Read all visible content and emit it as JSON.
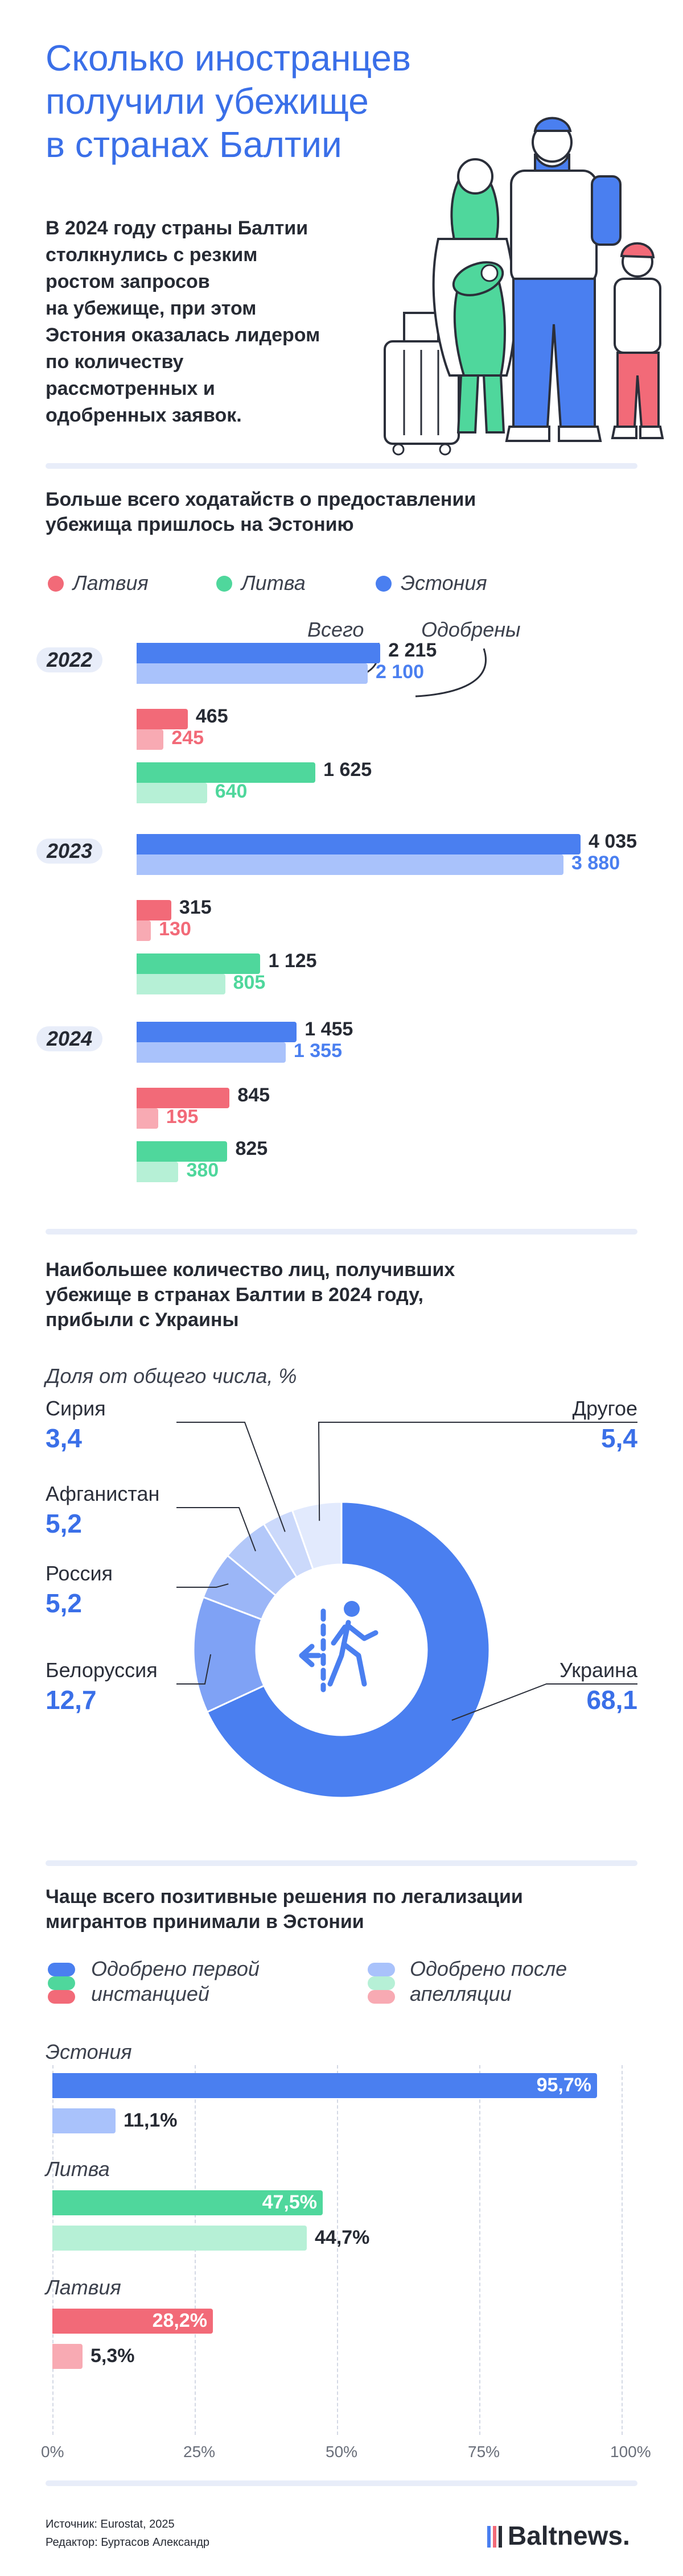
{
  "title_lines": [
    "Сколько иностранцев",
    "получили убежище",
    "в странах Балтии"
  ],
  "intro_lines": [
    "В 2024 году страны Балтии",
    "столкнулись с резким",
    "ростом запросов",
    "на убежище, при этом",
    "Эстония оказалась лидером",
    "по количеству",
    "рассмотренных и",
    "одобренных заявок."
  ],
  "colors": {
    "accent": "#3a6fe8",
    "estonia": "#4a7ff0",
    "estonia_light": "#a9c2fb",
    "lithuania": "#4fd79c",
    "lithuania_light": "#b6f0d6",
    "latvia": "#f26a78",
    "latvia_light": "#f8aab3",
    "rule": "#e8edf9"
  },
  "section1": {
    "heading_lines": [
      "Больше всего ходатайств о предоставлении",
      "убежища пришлось на Эстонию"
    ],
    "legend": [
      "Латвия",
      "Литва",
      "Эстония"
    ],
    "annot_total": "Всего",
    "annot_approved": "Одобрены",
    "chart_data": {
      "type": "bar",
      "categories": [
        "2022",
        "2023",
        "2024"
      ],
      "series": [
        {
          "name": "Эстония",
          "total": [
            2215,
            4035,
            1455
          ],
          "approved": [
            2100,
            3880,
            1355
          ]
        },
        {
          "name": "Латвия",
          "total": [
            465,
            315,
            845
          ],
          "approved": [
            245,
            130,
            195
          ]
        },
        {
          "name": "Литва",
          "total": [
            1625,
            1125,
            825
          ],
          "approved": [
            640,
            805,
            380
          ]
        }
      ],
      "value_labels": {
        "Эстония": {
          "total": [
            "2 215",
            "4 035",
            "1 455"
          ],
          "approved": [
            "2 100",
            "3 880",
            "1 355"
          ]
        },
        "Латвия": {
          "total": [
            "465",
            "315",
            "845"
          ],
          "approved": [
            "245",
            "130",
            "195"
          ]
        },
        "Литва": {
          "total": [
            "1 625",
            "1 125",
            "825"
          ],
          "approved": [
            "640",
            "805",
            "380"
          ]
        }
      }
    }
  },
  "section2": {
    "heading_lines": [
      "Наибольшее количество лиц, получивших",
      "убежище в странах Балтии в 2024 году,",
      "прибыли с Украины"
    ],
    "subtitle": "Доля от общего числа, %",
    "chart_data": {
      "type": "pie",
      "labels": [
        "Украина",
        "Белоруссия",
        "Россия",
        "Афганистан",
        "Сирия",
        "Другое"
      ],
      "values": [
        68.1,
        12.7,
        5.2,
        5.2,
        3.4,
        5.4
      ],
      "value_labels": [
        "68,1",
        "12,7",
        "5,2",
        "5,2",
        "3,4",
        "5,4"
      ],
      "colors": [
        "#4a7ff0",
        "#7fa2f5",
        "#9bb6f7",
        "#b3c8f9",
        "#cbd9fb",
        "#e2eafd"
      ]
    },
    "center_icon": "migrant-crossing-icon"
  },
  "section3": {
    "heading_lines": [
      "Чаще всего позитивные решения по легализации",
      "мигрантов принимали в Эстонии"
    ],
    "legend": {
      "first_lines": [
        "Одобрено первой",
        "инстанцией"
      ],
      "appeal_lines": [
        "Одобрено после",
        "апелляции"
      ]
    },
    "chart_data": {
      "type": "bar",
      "categories": [
        "Эстония",
        "Литва",
        "Латвия"
      ],
      "series": [
        {
          "name": "Одобрено первой инстанцией",
          "values": [
            95.7,
            47.5,
            28.2
          ]
        },
        {
          "name": "Одобрено после апелляции",
          "values": [
            11.1,
            44.7,
            5.3
          ]
        }
      ],
      "value_labels": [
        [
          "95,7%",
          "47,5%",
          "28,2%"
        ],
        [
          "11,1%",
          "44,7%",
          "5,3%"
        ]
      ],
      "xticks": [
        "0%",
        "25%",
        "50%",
        "75%",
        "100%"
      ],
      "xlim": [
        0,
        100
      ]
    }
  },
  "footer": {
    "source": "Источник: Eurostat, 2025",
    "editor": "Редактор: Буртасов Александр",
    "logo": "Baltnews."
  }
}
